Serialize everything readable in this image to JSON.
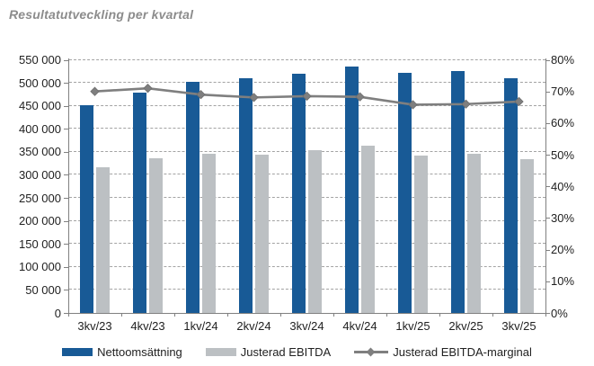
{
  "title": "Resultatutveckling per kvartal",
  "colors": {
    "bar_primary": "#185a96",
    "bar_secondary": "#bcc0c3",
    "line": "#7f7f7f",
    "grid": "#a3a3a3",
    "axis": "#808080",
    "text": "#212121",
    "title_text": "#8c8c8c",
    "background": "#ffffff"
  },
  "chart_data": {
    "type": "bar",
    "title": "Resultatutveckling per kvartal",
    "categories": [
      "3kv/23",
      "4kv/23",
      "1kv/24",
      "2kv/24",
      "3kv/24",
      "4kv/24",
      "1kv/25",
      "2kv/25",
      "3kv/25"
    ],
    "series": [
      {
        "name": "Nettoomsättning",
        "type": "bar",
        "axis": "left",
        "color": "#185a96",
        "values": [
          452000,
          478000,
          503000,
          509000,
          520000,
          535000,
          522000,
          526000,
          509000
        ]
      },
      {
        "name": "Justerad EBITDA",
        "type": "bar",
        "axis": "left",
        "color": "#bcc0c3",
        "values": [
          317000,
          336000,
          345000,
          344000,
          354000,
          363000,
          342000,
          345000,
          335000
        ]
      },
      {
        "name": "Justerad EBITDA-marginal",
        "type": "line",
        "axis": "right",
        "color": "#7f7f7f",
        "values": [
          70.0,
          71.0,
          69.0,
          68.1,
          68.5,
          68.3,
          65.8,
          66.0,
          66.8
        ]
      }
    ],
    "left_axis": {
      "min": 0,
      "max": 550000,
      "step": 50000,
      "tick_labels": [
        "0",
        "50 000",
        "100 000",
        "150 000",
        "200 000",
        "250 000",
        "300 000",
        "350 000",
        "400 000",
        "450 000",
        "500 000",
        "550 000"
      ]
    },
    "right_axis": {
      "min": 0,
      "max": 80,
      "step": 10,
      "tick_labels": [
        "0%",
        "10%",
        "20%",
        "30%",
        "40%",
        "50%",
        "60%",
        "70%",
        "80%"
      ]
    },
    "grid": "horizontal-dashed",
    "legend_position": "bottom"
  }
}
